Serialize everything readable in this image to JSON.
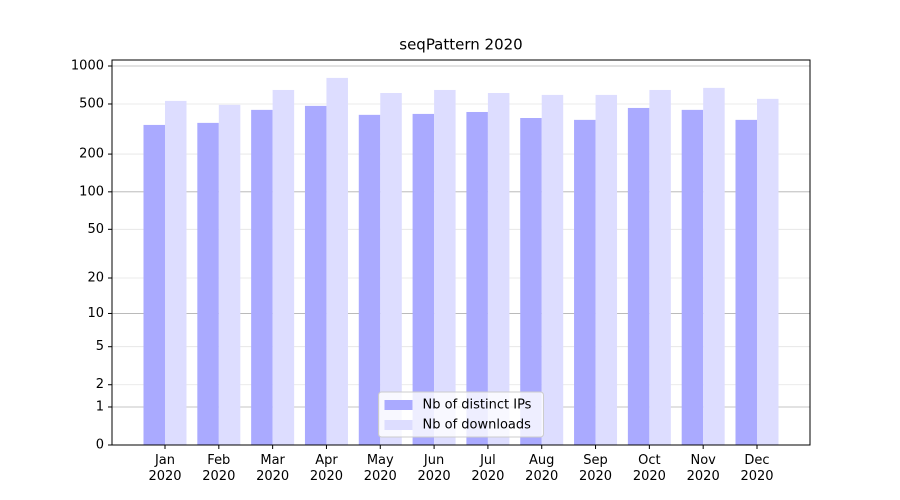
{
  "chart_data": {
    "type": "bar",
    "title": "seqPattern 2020",
    "categories": [
      "Jan\n2020",
      "Feb\n2020",
      "Mar\n2020",
      "Apr\n2020",
      "May\n2020",
      "Jun\n2020",
      "Jul\n2020",
      "Aug\n2020",
      "Sep\n2020",
      "Oct\n2020",
      "Nov\n2020",
      "Dec\n2020"
    ],
    "series": [
      {
        "name": "Nb of distinct IPs",
        "color": "#aaaaff",
        "values": [
          341,
          354,
          449,
          483,
          410,
          417,
          432,
          387,
          374,
          465,
          449,
          374
        ]
      },
      {
        "name": "Nb of downloads",
        "color": "#ddddff",
        "values": [
          529,
          492,
          646,
          805,
          611,
          646,
          611,
          590,
          590,
          646,
          671,
          549
        ]
      }
    ],
    "yscale": "log1p",
    "ylim": [
      0,
      1116
    ],
    "yticks": [
      0,
      1,
      2,
      5,
      10,
      20,
      50,
      100,
      200,
      500,
      1000
    ],
    "grid": true,
    "legend": "lower center"
  }
}
